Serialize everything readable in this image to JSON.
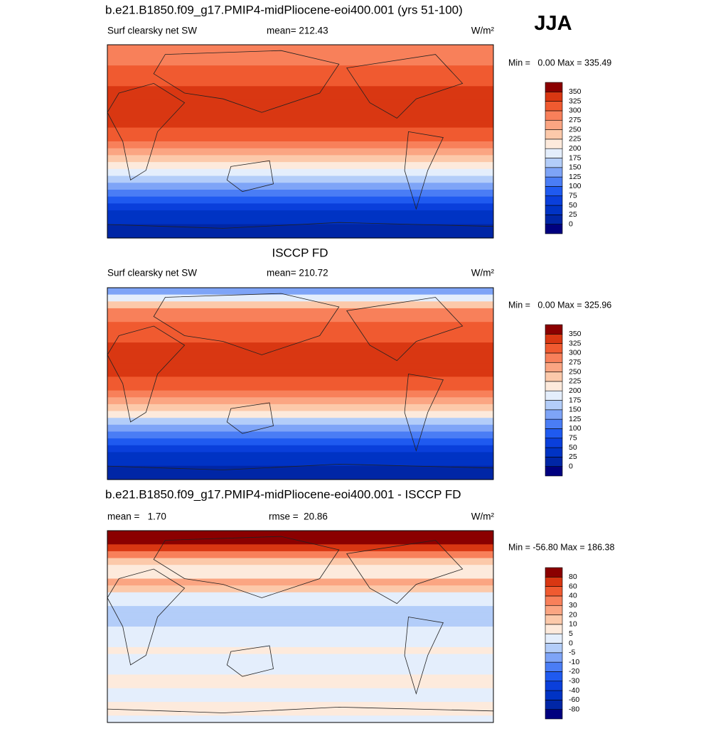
{
  "header": {
    "season": "JJA"
  },
  "panels": [
    {
      "title": "b.e21.B1850.f09_g17.PMIP4-midPliocene-eoi400.001 (yrs 51-100)",
      "left": "Surf clearsky net SW",
      "center": "mean= 212.43",
      "unit": "W/m²",
      "minmax": "Min =   0.00 Max = 335.49",
      "colorbar": {
        "labels": [
          0,
          25,
          50,
          75,
          100,
          125,
          150,
          175,
          200,
          225,
          250,
          275,
          300,
          325,
          350
        ],
        "colors": [
          "#00007f",
          "#0026a6",
          "#0033c4",
          "#0a3fdb",
          "#1f5af0",
          "#4a7df5",
          "#7ea4f7",
          "#b3cdf9",
          "#e4eefc",
          "#fdeadc",
          "#fcc9aa",
          "#fba582",
          "#f8805a",
          "#f05a30",
          "#d93712",
          "#8b0000"
        ]
      }
    },
    {
      "title": "ISCCP FD",
      "left": "Surf clearsky net SW",
      "center": "mean= 210.72",
      "unit": "W/m²",
      "minmax": "Min =   0.00 Max = 325.96",
      "colorbar": {
        "labels": [
          0,
          25,
          50,
          75,
          100,
          125,
          150,
          175,
          200,
          225,
          250,
          275,
          300,
          325,
          350
        ],
        "colors": [
          "#00007f",
          "#0026a6",
          "#0033c4",
          "#0a3fdb",
          "#1f5af0",
          "#4a7df5",
          "#7ea4f7",
          "#b3cdf9",
          "#e4eefc",
          "#fdeadc",
          "#fcc9aa",
          "#fba582",
          "#f8805a",
          "#f05a30",
          "#d93712",
          "#8b0000"
        ]
      }
    },
    {
      "title": "b.e21.B1850.f09_g17.PMIP4-midPliocene-eoi400.001 - ISCCP FD",
      "left": "mean =   1.70",
      "center": "rmse =  20.86",
      "unit": "W/m²",
      "minmax": "Min = -56.80 Max = 186.38",
      "colorbar": {
        "labels": [
          -80,
          -60,
          -40,
          -30,
          -20,
          -10,
          -5,
          0,
          5,
          10,
          20,
          30,
          40,
          60,
          80
        ],
        "colors": [
          "#00007f",
          "#0026a6",
          "#0033c4",
          "#0a3fdb",
          "#1f5af0",
          "#4a7df5",
          "#7ea4f7",
          "#b3cdf9",
          "#e4eefc",
          "#fdeadc",
          "#fcc9aa",
          "#fba582",
          "#f8805a",
          "#f05a30",
          "#d93712",
          "#8b0000"
        ]
      }
    }
  ]
}
